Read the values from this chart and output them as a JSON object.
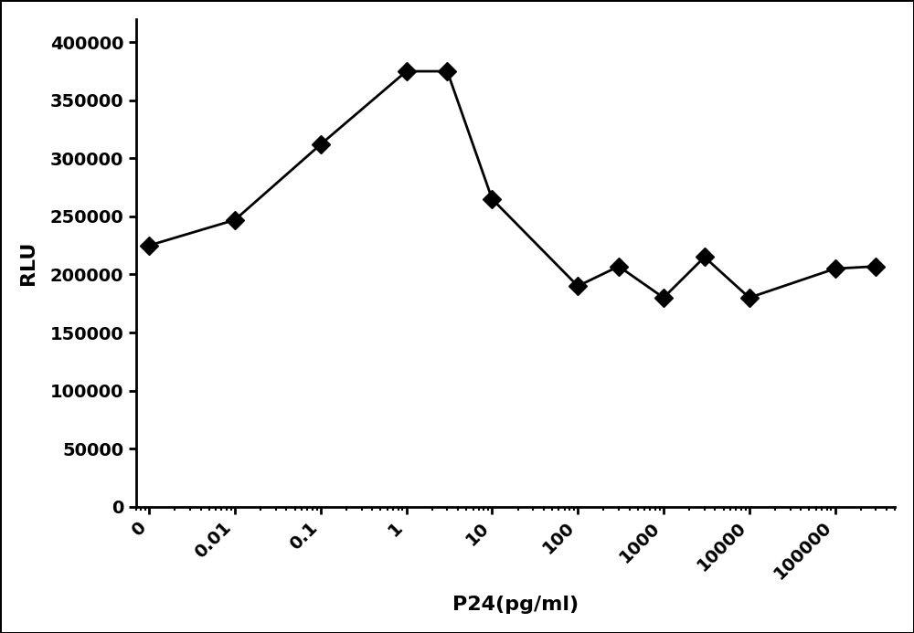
{
  "x_values": [
    0.001,
    0.01,
    0.1,
    1,
    3,
    10,
    100,
    300,
    1000,
    3000,
    10000,
    100000,
    300000
  ],
  "y_values": [
    225000,
    247000,
    312000,
    375000,
    375000,
    265000,
    190000,
    207000,
    180000,
    215000,
    180000,
    205000,
    207000
  ],
  "x_tick_labels": [
    "0",
    "0.01",
    "0.1",
    "1",
    "10",
    "100",
    "1000",
    "10000",
    "100000"
  ],
  "x_tick_positions": [
    0.001,
    0.01,
    0.1,
    1,
    10,
    100,
    1000,
    10000,
    100000
  ],
  "xlabel": "P24(pg/ml)",
  "ylabel": "RLU",
  "ylim": [
    0,
    420000
  ],
  "yticks": [
    0,
    50000,
    100000,
    150000,
    200000,
    250000,
    300000,
    350000,
    400000
  ],
  "line_color": "#000000",
  "marker_color": "#000000",
  "marker_style": "D",
  "marker_size": 10,
  "line_width": 2.0,
  "title": "",
  "background_color": "#ffffff",
  "border_color": "#000000"
}
